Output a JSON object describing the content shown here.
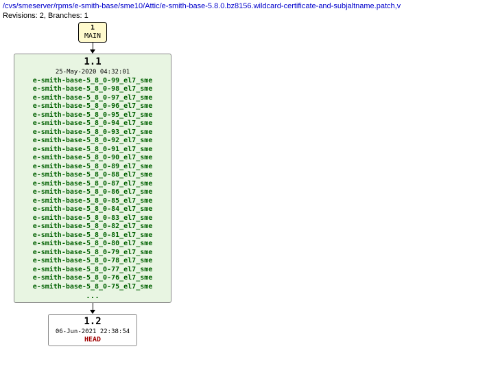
{
  "header": {
    "path": "/cvs/smeserver/rpms/e-smith-base/sme10/Attic/e-smith-base-5.8.0.bz8156.wildcard-certificate-and-subjaltname.patch,v",
    "revisions_label": "Revisions: 2, Branches: 1"
  },
  "main_node": {
    "num": "1",
    "label": "MAIN",
    "bg_color": "#fffacd",
    "border_color": "#000000"
  },
  "node_1_1": {
    "version": "1.1",
    "timestamp": "25-May-2020 04:32:01",
    "bg_color": "#e8f5e2",
    "border_color": "#888888",
    "tag_color": "#006000",
    "tags": [
      "e-smith-base-5_8_0-99_el7_sme",
      "e-smith-base-5_8_0-98_el7_sme",
      "e-smith-base-5_8_0-97_el7_sme",
      "e-smith-base-5_8_0-96_el7_sme",
      "e-smith-base-5_8_0-95_el7_sme",
      "e-smith-base-5_8_0-94_el7_sme",
      "e-smith-base-5_8_0-93_el7_sme",
      "e-smith-base-5_8_0-92_el7_sme",
      "e-smith-base-5_8_0-91_el7_sme",
      "e-smith-base-5_8_0-90_el7_sme",
      "e-smith-base-5_8_0-89_el7_sme",
      "e-smith-base-5_8_0-88_el7_sme",
      "e-smith-base-5_8_0-87_el7_sme",
      "e-smith-base-5_8_0-86_el7_sme",
      "e-smith-base-5_8_0-85_el7_sme",
      "e-smith-base-5_8_0-84_el7_sme",
      "e-smith-base-5_8_0-83_el7_sme",
      "e-smith-base-5_8_0-82_el7_sme",
      "e-smith-base-5_8_0-81_el7_sme",
      "e-smith-base-5_8_0-80_el7_sme",
      "e-smith-base-5_8_0-79_el7_sme",
      "e-smith-base-5_8_0-78_el7_sme",
      "e-smith-base-5_8_0-77_el7_sme",
      "e-smith-base-5_8_0-76_el7_sme",
      "e-smith-base-5_8_0-75_el7_sme"
    ],
    "ellipsis": "..."
  },
  "node_1_2": {
    "version": "1.2",
    "timestamp": "06-Jun-2021 22:38:54",
    "head_label": "HEAD",
    "bg_color": "#ffffff",
    "border_color": "#888888",
    "head_color": "#a00000"
  },
  "diagram_style": {
    "connector_color": "#000000",
    "font_family": "monospace"
  }
}
